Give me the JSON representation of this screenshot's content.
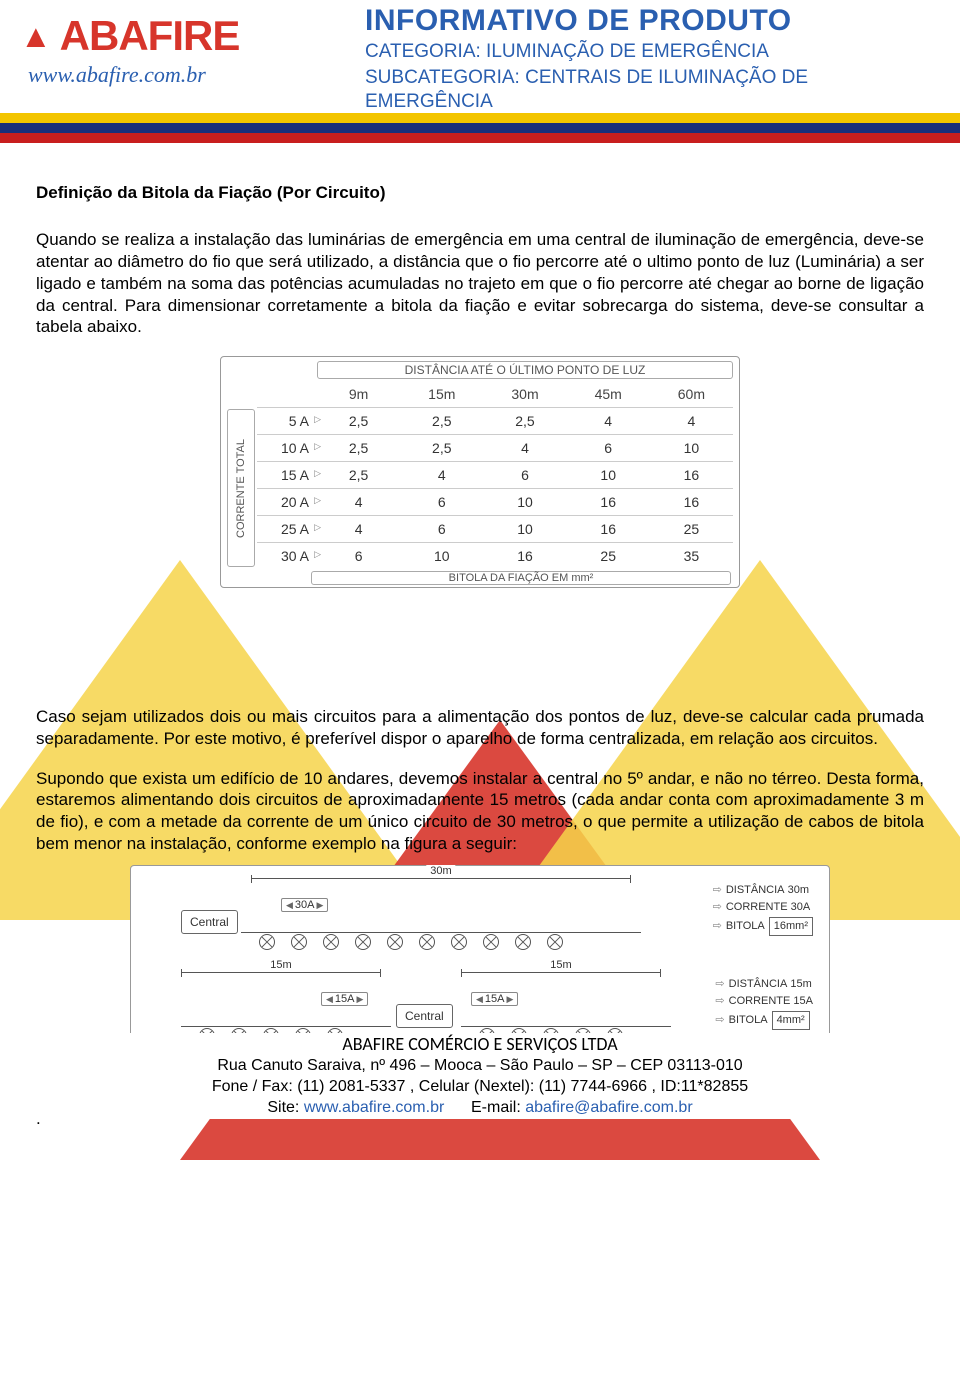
{
  "header": {
    "logo_text": "ABAFIRE",
    "logo_url": "www.abafire.com.br",
    "doc_title": "INFORMATIVO DE PRODUTO",
    "category_line": "CATEGORIA: ILUMINAÇÃO DE EMERGÊNCIA",
    "subcategory_line": "SUBCATEGORIA: CENTRAIS DE ILUMINAÇÃO DE EMERGÊNCIA",
    "stripe_colors": {
      "yellow": "#f3c500",
      "blue": "#1a2f7a",
      "red": "#c81e1e"
    }
  },
  "section_title": "Definição da Bitola da Fiação (Por Circuito)",
  "para1": "Quando se realiza a instalação das luminárias de emergência em uma central de iluminação de emergência, deve-se atentar ao diâmetro do fio que será utilizado, a distância que o fio percorre até o ultimo ponto de luz (Luminária) a ser ligado e também na soma das potências acumuladas no trajeto em que o fio percorre até chegar ao borne de ligação da central. Para dimensionar corretamente a bitola da fiação e evitar sobrecarga do sistema, deve-se consultar a tabela abaixo.",
  "table1": {
    "top_title": "DISTÂNCIA ATÉ O ÚLTIMO PONTO DE LUZ",
    "side_title": "CORRENTE TOTAL",
    "bottom_title": "BITOLA DA FIAÇÃO EM mm²",
    "col_headers": [
      "9m",
      "15m",
      "30m",
      "45m",
      "60m"
    ],
    "rows": [
      {
        "label": "5 A",
        "vals": [
          "2,5",
          "2,5",
          "2,5",
          "4",
          "4"
        ]
      },
      {
        "label": "10 A",
        "vals": [
          "2,5",
          "2,5",
          "4",
          "6",
          "10"
        ]
      },
      {
        "label": "15 A",
        "vals": [
          "2,5",
          "4",
          "6",
          "10",
          "16"
        ]
      },
      {
        "label": "20 A",
        "vals": [
          "4",
          "6",
          "10",
          "16",
          "16"
        ]
      },
      {
        "label": "25 A",
        "vals": [
          "4",
          "6",
          "10",
          "16",
          "25"
        ]
      },
      {
        "label": "30 A",
        "vals": [
          "6",
          "10",
          "16",
          "25",
          "35"
        ]
      }
    ]
  },
  "para2": "Caso sejam utilizados dois ou mais circuitos para a alimentação dos pontos de luz, deve-se calcular cada prumada separadamente. Por este motivo, é preferível dispor o aparelho de forma centralizada, em relação aos circuitos.",
  "para3": "Supondo que exista um edifício de 10 andares, devemos instalar a central no 5º andar, e não no térreo. Desta forma, estaremos alimentando dois circuitos de aproximadamente 15 metros (cada andar conta com aproximadamente 3 m de fio), e com a metade da corrente de um único circuito de 30 metros, o que permite a utilização de cabos de bitola bem menor na instalação, conforme exemplo na figura a seguir:",
  "diagram": {
    "central_label": "Central",
    "circuit_a": {
      "span_label": "30m",
      "arrow_label": "30A",
      "lamp_count": 10,
      "info": {
        "dist_label": "DISTÂNCIA",
        "dist_val": "30m",
        "curr_label": "CORRENTE",
        "curr_val": "30A",
        "bitola_label": "BITOLA",
        "bitola_val": "16mm²"
      }
    },
    "circuit_b": {
      "left": {
        "span_label": "15m",
        "arrow_label": "15A",
        "lamp_count": 5
      },
      "right": {
        "span_label": "15m",
        "arrow_label": "15A",
        "lamp_count": 5
      },
      "info": {
        "dist_label": "DISTÂNCIA",
        "dist_val": "15m",
        "curr_label": "CORRENTE",
        "curr_val": "15A",
        "bitola_label": "BITOLA",
        "bitola_val": "4mm²"
      }
    }
  },
  "footer": {
    "company": "ABAFIRE COMÉRCIO E SERVIÇOS LTDA",
    "address": "Rua Canuto Saraiva, nº 496 – Mooca – São Paulo – SP – CEP 03113-010",
    "phones": "Fone / Fax: (11) 2081-5337  ,  Celular (Nextel): (11) 7744-6966  ,  ID:11*82855",
    "site_prefix": "Site: ",
    "site_url": "www.abafire.com.br",
    "email_prefix": "E-mail: ",
    "email": "abafire@abafire.com.br"
  },
  "colors": {
    "brand_red": "#d7352b",
    "brand_blue": "#2a5fb0",
    "tri_yellow": "#f6d34a",
    "tri_red": "#d7352b"
  }
}
